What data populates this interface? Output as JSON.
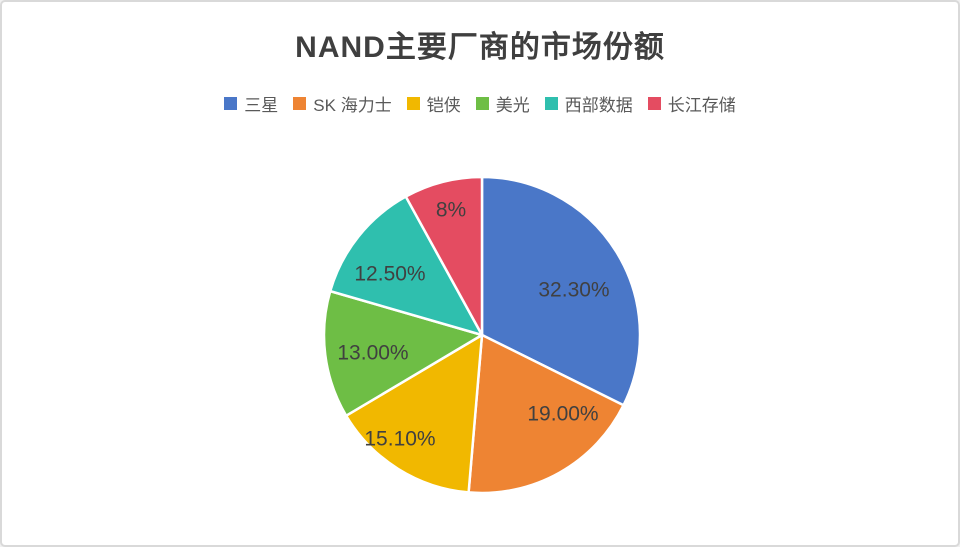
{
  "page": {
    "background": "#ffffff",
    "border_color": "#d9d9d9"
  },
  "chart_data": {
    "type": "pie",
    "title": "NAND主要厂商的市场份额",
    "legend_position": "top",
    "start_angle_deg": 0,
    "direction": "clockwise",
    "slices": [
      {
        "label": "三星",
        "value": 32.3,
        "display": "32.30%",
        "color": "#4a77c8"
      },
      {
        "label": "SK 海力士",
        "value": 19.0,
        "display": "19.00%",
        "color": "#ee8433"
      },
      {
        "label": "铠侠",
        "value": 15.1,
        "display": "15.10%",
        "color": "#f1b800"
      },
      {
        "label": "美光",
        "value": 13.0,
        "display": "13.00%",
        "color": "#6ebe45"
      },
      {
        "label": "西部数据",
        "value": 12.5,
        "display": "12.50%",
        "color": "#2fbfae"
      },
      {
        "label": "长江存储",
        "value": 8.0,
        "display": "8%",
        "color": "#e44c61"
      }
    ],
    "text_colors": {
      "title": "#3f3f3f",
      "data_label": "#404040",
      "legend": "#595959"
    }
  }
}
